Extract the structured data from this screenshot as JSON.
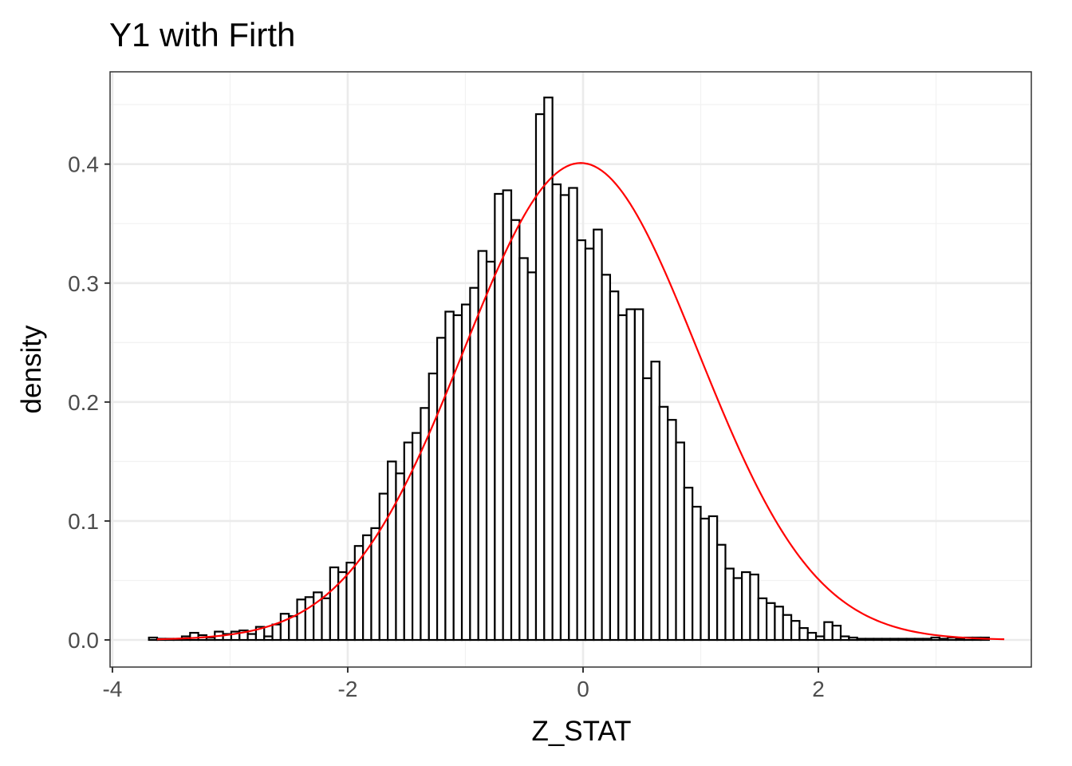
{
  "chart_data": {
    "type": "bar",
    "chart_kind": "histogram with normal density curve",
    "title": "Y1 with Firth",
    "xlabel": "Z_STAT",
    "ylabel": "density",
    "xlim": [
      -4.02,
      3.81
    ],
    "ylim": [
      -0.0228,
      0.4776
    ],
    "x_ticks": [
      -4,
      -2,
      0,
      2
    ],
    "x_tick_labels": [
      "-4",
      "-2",
      "0",
      "2"
    ],
    "y_ticks": [
      0.0,
      0.1,
      0.2,
      0.3,
      0.4
    ],
    "y_tick_labels": [
      "0.0",
      "0.1",
      "0.2",
      "0.3",
      "0.4"
    ],
    "grid": true,
    "theme": "black-and-white",
    "bin_width": 0.07,
    "bin_start": -3.69,
    "values": [
      0.002,
      0.001,
      0.001,
      0.001,
      0.003,
      0.006,
      0.004,
      0.002,
      0.007,
      0.005,
      0.007,
      0.008,
      0.005,
      0.011,
      0.003,
      0.013,
      0.022,
      0.02,
      0.034,
      0.036,
      0.04,
      0.035,
      0.061,
      0.057,
      0.065,
      0.079,
      0.088,
      0.094,
      0.123,
      0.15,
      0.14,
      0.166,
      0.174,
      0.195,
      0.224,
      0.254,
      0.276,
      0.273,
      0.282,
      0.296,
      0.327,
      0.318,
      0.375,
      0.378,
      0.353,
      0.321,
      0.309,
      0.442,
      0.456,
      0.383,
      0.374,
      0.38,
      0.336,
      0.329,
      0.345,
      0.307,
      0.293,
      0.273,
      0.278,
      0.278,
      0.22,
      0.234,
      0.196,
      0.185,
      0.166,
      0.128,
      0.112,
      0.102,
      0.104,
      0.08,
      0.06,
      0.052,
      0.057,
      0.055,
      0.035,
      0.031,
      0.028,
      0.021,
      0.016,
      0.01,
      0.006,
      0.003,
      0.015,
      0.012,
      0.003,
      0.002,
      0.001,
      0.001,
      0.001,
      0.001,
      0.001,
      0.001,
      0.001,
      0.001,
      0.001,
      0.002,
      0.001,
      0.002,
      0.001,
      0.002,
      0.002,
      0.002
    ],
    "series": [
      {
        "name": "",
        "kind": "normal-density-curve",
        "mean": -0.02,
        "sd": 0.995,
        "x_range": [
          -3.62,
          3.58
        ]
      }
    ],
    "colors": {
      "panel_border": "#333333",
      "grid_major": "#ebebeb",
      "grid_minor": "#f2f2f2",
      "bar_fill": "#ffffff",
      "bar_outline": "#000000",
      "curve": "#ff0000",
      "tick_text": "#4d4d4d",
      "title_text": "#000000"
    }
  }
}
